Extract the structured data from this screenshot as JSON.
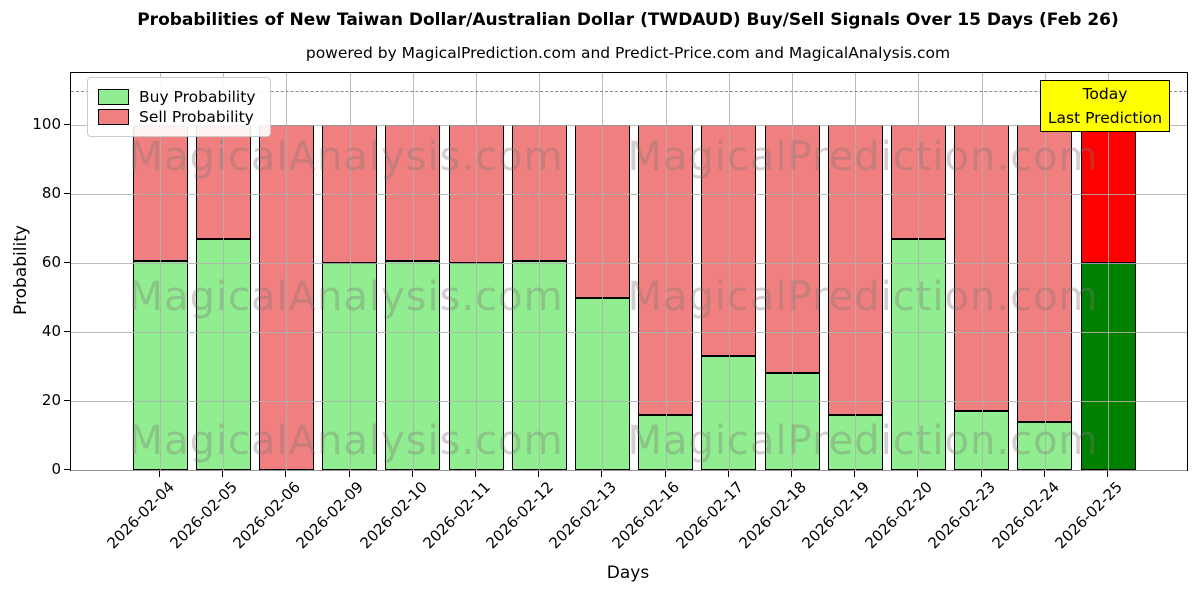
{
  "chart_data": {
    "type": "bar",
    "stacked": true,
    "title": "Probabilities of New Taiwan Dollar/Australian Dollar (TWDAUD) Buy/Sell Signals Over 15 Days (Feb 26)",
    "subtitle": "powered by MagicalPrediction.com and Predict-Price.com and MagicalAnalysis.com",
    "xlabel": "Days",
    "ylabel": "Probability",
    "categories": [
      "2026-02-04",
      "2026-02-05",
      "2026-02-06",
      "2026-02-09",
      "2026-02-10",
      "2026-02-11",
      "2026-02-12",
      "2026-02-13",
      "2026-02-16",
      "2026-02-17",
      "2026-02-18",
      "2026-02-19",
      "2026-02-20",
      "2026-02-23",
      "2026-02-24",
      "2026-02-25"
    ],
    "series": [
      {
        "name": "Buy Probability",
        "color": "#90EE90",
        "values": [
          60.5,
          67,
          0,
          60,
          60.5,
          60,
          60.5,
          50,
          16,
          33,
          28,
          16,
          67,
          17,
          14,
          60
        ]
      },
      {
        "name": "Sell Probability",
        "color": "#F08080",
        "values": [
          39.5,
          33,
          100,
          40,
          39.5,
          40,
          39.5,
          50,
          84,
          67,
          72,
          84,
          33,
          83,
          86,
          40
        ]
      }
    ],
    "highlight_last_bar": {
      "index": 15,
      "buy_color": "#008000",
      "sell_color": "#FF0000"
    },
    "bar_edge_color": "#000000",
    "yticks": [
      0,
      20,
      40,
      60,
      80,
      100
    ],
    "ylim": [
      0,
      115
    ],
    "dashed_guide_y": 110,
    "grid": true,
    "legend_position": "upper-left"
  },
  "annotation_box": {
    "lines": [
      "Today",
      "Last Prediction"
    ],
    "bg_color": "#FFFF00",
    "border_color": "#000000"
  },
  "watermarks": {
    "left_text": "MagicalAnalysis.com",
    "right_text": "MagicalPrediction.com"
  }
}
